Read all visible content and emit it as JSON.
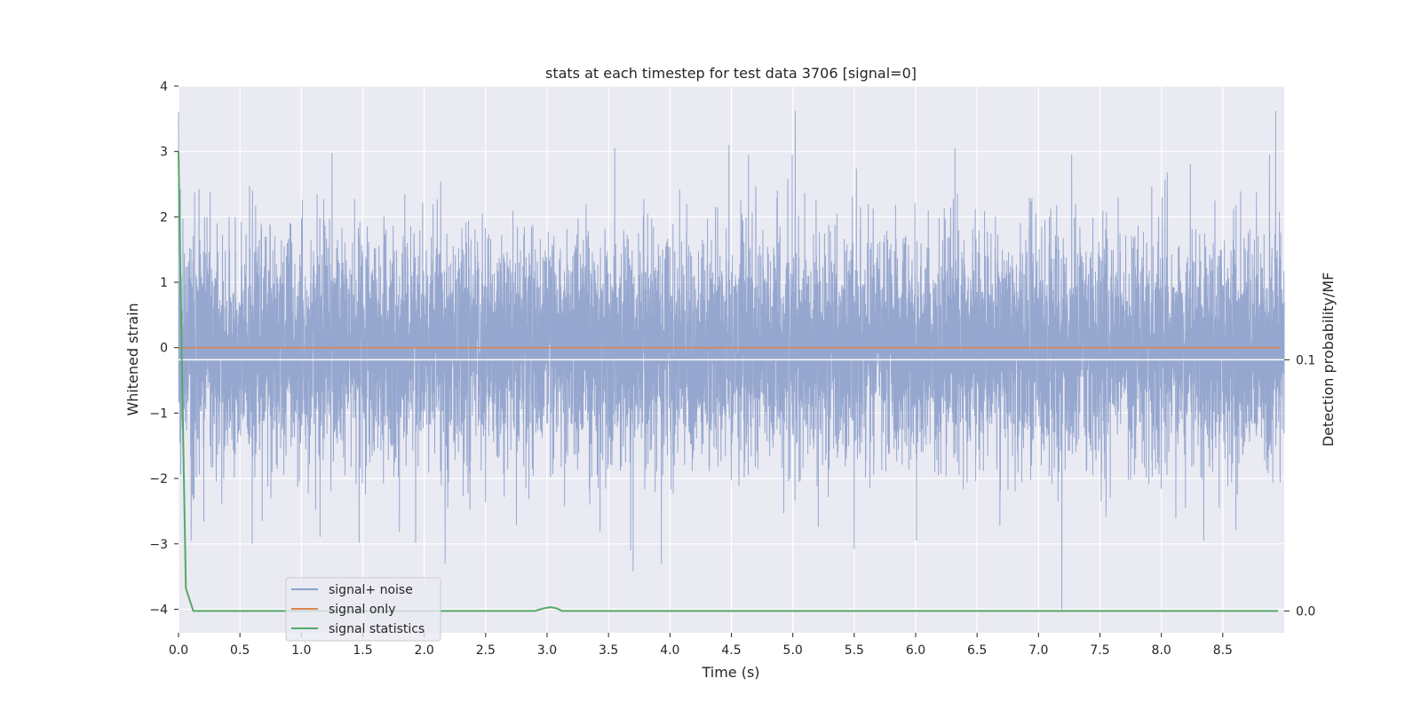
{
  "chart_data": {
    "type": "line",
    "title": "stats at each timestep for test data 3706 [signal=0]",
    "xlabel": "Time (s)",
    "ylabel": "Whitened strain",
    "y2label": "Detection probability/MF",
    "xlim": [
      0,
      9.0
    ],
    "ylim": [
      -4.36,
      4.0
    ],
    "y2lim": [
      -0.0087,
      0.209
    ],
    "x_ticks": [
      0.0,
      0.5,
      1.0,
      1.5,
      2.0,
      2.5,
      3.0,
      3.5,
      4.0,
      4.5,
      5.0,
      5.5,
      6.0,
      6.5,
      7.0,
      7.5,
      8.0,
      8.5
    ],
    "x_tick_labels": [
      "0.0",
      "0.5",
      "1.0",
      "1.5",
      "2.0",
      "2.5",
      "3.0",
      "3.5",
      "4.0",
      "4.5",
      "5.0",
      "5.5",
      "6.0",
      "6.5",
      "7.0",
      "7.5",
      "8.0",
      "8.5"
    ],
    "y_ticks": [
      -4,
      -3,
      -2,
      -1,
      0,
      1,
      2,
      3,
      4
    ],
    "y_tick_labels": [
      "−4",
      "−3",
      "−2",
      "−1",
      "0",
      "1",
      "2",
      "3",
      "4"
    ],
    "y2_ticks": [
      0.0,
      0.1
    ],
    "y2_tick_labels": [
      "0.0",
      "0.1"
    ],
    "grid": true,
    "legend_placement": "lower-left",
    "noise_std": 0.85,
    "noise_duration": 9.0,
    "noise_spikes": [
      {
        "x": 0.0,
        "y": 3.6
      },
      {
        "x": 5.02,
        "y": 3.62
      },
      {
        "x": 8.93,
        "y": 3.62
      },
      {
        "x": 3.55,
        "y": 3.05
      },
      {
        "x": 4.48,
        "y": 3.1
      },
      {
        "x": 6.32,
        "y": 3.05
      },
      {
        "x": 8.88,
        "y": 2.95
      },
      {
        "x": 1.25,
        "y": 2.98
      },
      {
        "x": 3.7,
        "y": -3.42
      },
      {
        "x": 3.93,
        "y": -3.3
      },
      {
        "x": 2.17,
        "y": -3.3
      },
      {
        "x": 7.19,
        "y": -4.0
      },
      {
        "x": 5.5,
        "y": -3.08
      },
      {
        "x": 0.6,
        "y": -3.0
      },
      {
        "x": 1.47,
        "y": -2.98
      },
      {
        "x": 1.93,
        "y": -2.98
      },
      {
        "x": 3.68,
        "y": -3.1
      }
    ],
    "series": [
      {
        "name": "signal+ noise",
        "color": "#8da0cb",
        "kind": "noise"
      },
      {
        "name": "signal only",
        "color": "#dd8452",
        "x": [
          0.0,
          8.97
        ],
        "y": [
          0.0,
          0.0
        ]
      },
      {
        "name": "signal statistics",
        "color": "#55a868",
        "axis": "right",
        "x": [
          0.0,
          0.03,
          0.06,
          0.12,
          1.0,
          2.0,
          2.9,
          2.97,
          3.03,
          3.08,
          3.12,
          4.0,
          6.0,
          8.0,
          8.95
        ],
        "y": [
          0.183,
          0.09,
          0.009,
          0.0,
          0.0,
          0.0,
          0.0,
          0.001,
          0.0015,
          0.001,
          0.0,
          0.0,
          0.0,
          0.0,
          0.0
        ]
      }
    ],
    "horizontal_line": {
      "axis": "right",
      "y": 0.1,
      "color": "#ffffff"
    }
  }
}
